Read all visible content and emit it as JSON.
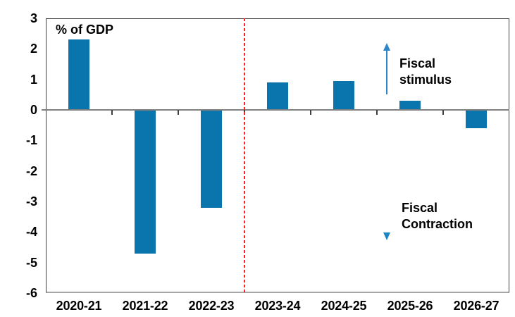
{
  "chart_data": {
    "type": "bar",
    "title": "",
    "unit_label": "% of GDP",
    "categories": [
      "2020-21",
      "2021-22",
      "2022-23",
      "2023-24",
      "2024-25",
      "2025-26",
      "2026-27"
    ],
    "values": [
      2.3,
      -4.7,
      -3.2,
      0.9,
      0.95,
      0.3,
      -0.6
    ],
    "xlabel": "",
    "ylabel": "% of GDP",
    "ylim": [
      -6,
      3
    ],
    "yticks": [
      3,
      2,
      1,
      0,
      -1,
      -2,
      -3,
      -4,
      -5,
      -6
    ],
    "grid": false,
    "legend_position": "none",
    "bar_color": "#0A75AD",
    "axis_line_color": "#808080",
    "divider": {
      "after_index": 3,
      "position": "between 2022-23 and 2023-24",
      "style": "dashed",
      "color": "#FF2020"
    },
    "annotations": {
      "stimulus": {
        "line1": "Fiscal",
        "line2": "stimulus",
        "arrow": "up",
        "arrow_color": "#2E86C8"
      },
      "contraction": {
        "line1": "Fiscal",
        "line2": "Contraction",
        "arrow": "down",
        "arrow_color": "#4BA0D6"
      }
    }
  }
}
